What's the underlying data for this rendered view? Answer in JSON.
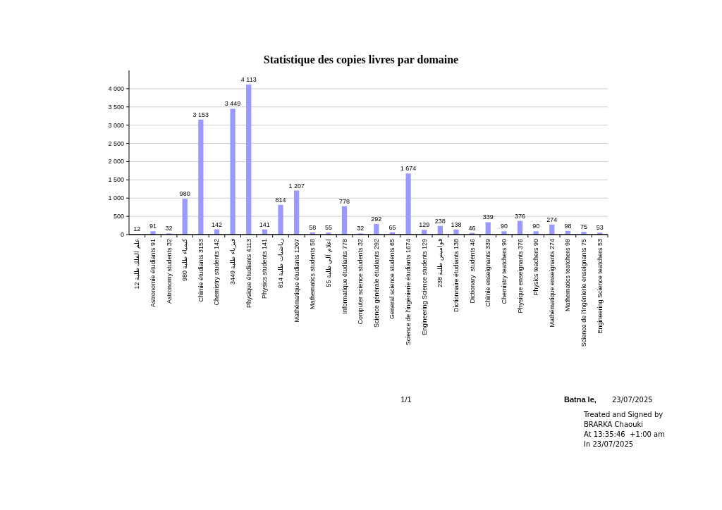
{
  "chart_data": {
    "type": "bar",
    "title": "Statistique des copies livres par domaine",
    "categories": [
      "علم الفلك طلبة 12",
      "Astronomie étudiants 91",
      "Astronomy students 32",
      "كيمياء طلبة 980",
      "Chimie étudiants 3153",
      "Chemistry students 142",
      "فيزياء طلبة 3449",
      "Physique étudiants 4113",
      "Physics students 141",
      "رياضيات طلبة 814",
      "Mathématique étudiants 1207",
      "Mathematics students 58",
      "اعلام آلي طلبة 55",
      "Informatique étudiants 778",
      "Computer science students 32",
      "Science générale étudiants 292",
      "General science students 65",
      "Science de l'ingénierie étudiants 1674",
      "Engineering Science students 129",
      "قواميس طلبة 238",
      "Dictionnaire étudiants 138",
      "Dictionary  students 46",
      "Chimie enseignants 339",
      "Chemistry teatchers 90",
      "Physique enseignants 376",
      "Physics teachers 90",
      "Mathématique enseignants 274",
      "Mathematics teatchers 98",
      "Science de l'ingénierie enseignants 75",
      "Engineering Science teatchers 53"
    ],
    "values": [
      12,
      91,
      32,
      980,
      3153,
      142,
      3449,
      4113,
      141,
      814,
      1207,
      58,
      55,
      778,
      32,
      292,
      65,
      1674,
      129,
      238,
      138,
      46,
      339,
      90,
      376,
      90,
      274,
      98,
      75,
      53
    ],
    "value_labels": [
      "12",
      "91",
      "32",
      "980",
      "3 153",
      "142",
      "3 449",
      "4 113",
      "141",
      "814",
      "1 207",
      "58",
      "55",
      "778",
      "32",
      "292",
      "65",
      "1 674",
      "129",
      "238",
      "138",
      "46",
      "339",
      "90",
      "376",
      "90",
      "274",
      "98",
      "75",
      "53"
    ],
    "color": "#9999ff",
    "ylim": [
      0,
      4500
    ],
    "yticks": [
      0,
      500,
      {
        "value": 1000,
        "label": "1 000"
      },
      {
        "value": 1500,
        "label": "1 500"
      },
      {
        "value": 2000,
        "label": "2 000"
      },
      {
        "value": 2500,
        "label": "2 500"
      },
      {
        "value": 3000,
        "label": "3 000"
      },
      {
        "value": 3500,
        "label": "3 500"
      },
      {
        "value": 4000,
        "label": "4 000"
      }
    ],
    "grid": "y",
    "annotations": [
      "1/1",
      "Batna le,",
      "23/07/2025",
      "Treated and Signed by",
      "BRARKA Chaouki",
      "At 13:35:46  +1:00 am",
      "In 23/07/2025"
    ]
  }
}
